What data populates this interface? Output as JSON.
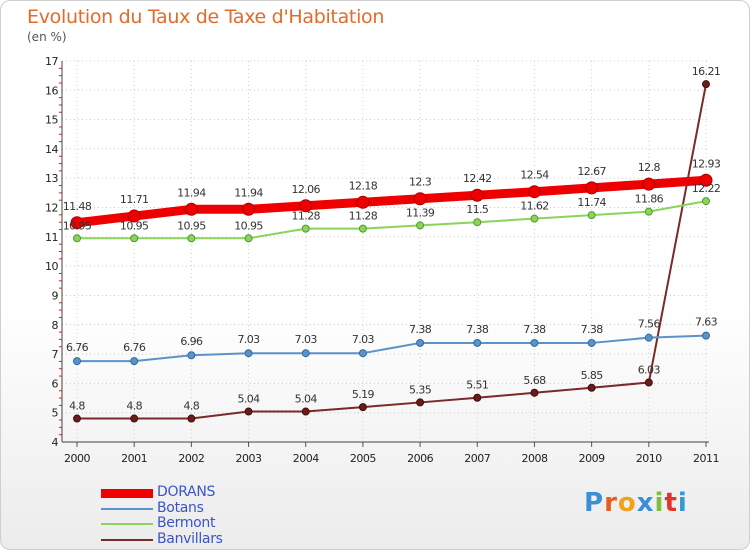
{
  "header": {
    "title": "Evolution du Taux de Taxe d'Habitation",
    "unit": "(en %)"
  },
  "logo": {
    "text": "Proxiti",
    "colors": [
      "#3a8fd9",
      "#e85d1f",
      "#f0a21a",
      "#3a8fd9",
      "#7bbf3a",
      "#e2342a",
      "#2e9bd6"
    ]
  },
  "chart_data": {
    "type": "line",
    "x": [
      "2000",
      "2001",
      "2002",
      "2003",
      "2004",
      "2005",
      "2006",
      "2007",
      "2008",
      "2009",
      "2010",
      "2011"
    ],
    "ylim": [
      4,
      17
    ],
    "yticks": [
      "4",
      "5",
      "6",
      "7",
      "8",
      "9",
      "10",
      "11",
      "12",
      "13",
      "14",
      "15",
      "16",
      "17"
    ],
    "grid": true,
    "legend_position": "bottom-left",
    "series": [
      {
        "name": "DORANS",
        "color": "#ee0000",
        "values": [
          11.48,
          11.71,
          11.94,
          11.94,
          12.06,
          12.18,
          12.3,
          12.42,
          12.54,
          12.67,
          12.8,
          12.93
        ],
        "labels": [
          "11.48",
          "11.71",
          "11.94",
          "11.94",
          "12.06",
          "12.18",
          "12.3",
          "12.42",
          "12.54",
          "12.67",
          "12.8",
          "12.93"
        ]
      },
      {
        "name": "Botans",
        "color": "#5b93c9",
        "values": [
          6.76,
          6.76,
          6.96,
          7.03,
          7.03,
          7.03,
          7.38,
          7.38,
          7.38,
          7.38,
          7.56,
          7.63
        ],
        "labels": [
          "6.76",
          "6.76",
          "6.96",
          "7.03",
          "7.03",
          "7.03",
          "7.38",
          "7.38",
          "7.38",
          "7.38",
          "7.56",
          "7.63"
        ]
      },
      {
        "name": "Bermont",
        "color": "#8ad45a",
        "values": [
          10.95,
          10.95,
          10.95,
          10.95,
          11.28,
          11.28,
          11.39,
          11.5,
          11.62,
          11.74,
          11.86,
          12.22
        ],
        "labels": [
          "10.95",
          "10.95",
          "10.95",
          "10.95",
          "11.28",
          "11.28",
          "11.39",
          "11.5",
          "11.62",
          "11.74",
          "11.86",
          "12.22"
        ]
      },
      {
        "name": "Banvillars",
        "color": "#7a2a2a",
        "values": [
          4.8,
          4.8,
          4.8,
          5.04,
          5.04,
          5.19,
          5.35,
          5.51,
          5.68,
          5.85,
          6.03,
          16.21
        ],
        "labels": [
          "4.8",
          "4.8",
          "4.8",
          "5.04",
          "5.04",
          "5.19",
          "5.35",
          "5.51",
          "5.68",
          "5.85",
          "6.03",
          "16.21"
        ]
      }
    ]
  }
}
